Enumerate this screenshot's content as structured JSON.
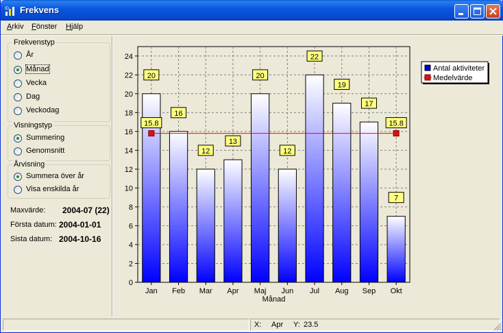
{
  "window": {
    "title": "Frekvens",
    "icon": "app-icon"
  },
  "menu": [
    {
      "label": "Arkiv",
      "accel": "A",
      "rest": "rkiv"
    },
    {
      "label": "Fönster",
      "accel": "F",
      "rest": "önster"
    },
    {
      "label": "Hjälp",
      "accel": "H",
      "rest": "jälp"
    }
  ],
  "groups": {
    "frekvenstyp": {
      "title": "Frekvenstyp",
      "options": [
        {
          "label": "År",
          "selected": false
        },
        {
          "label": "Månad",
          "selected": true
        },
        {
          "label": "Vecka",
          "selected": false
        },
        {
          "label": "Dag",
          "selected": false
        },
        {
          "label": "Veckodag",
          "selected": false
        }
      ]
    },
    "visningstyp": {
      "title": "Visningstyp",
      "options": [
        {
          "label": "Summering",
          "selected": true
        },
        {
          "label": "Genomsnitt",
          "selected": false
        }
      ]
    },
    "arvisning": {
      "title": "Årvisning",
      "options": [
        {
          "label": "Summera över år",
          "selected": true
        },
        {
          "label": "Visa enskilda år",
          "selected": false
        }
      ]
    }
  },
  "info": [
    {
      "label": "Maxvärde:",
      "value": "2004-07 (22)"
    },
    {
      "label": "Första datum:",
      "value": "2004-01-01"
    },
    {
      "label": "Sista datum:",
      "value": "2004-10-16"
    }
  ],
  "status": {
    "x_label": "X:",
    "x_value": "Apr",
    "y_label": "Y:",
    "y_value": "23.5"
  },
  "colors": {
    "bar_top": "#ffffff",
    "bar_bottom": "#0000ff",
    "mean_line": "#ff0000",
    "label_bg": "#ffff80",
    "plot_bg": "#ece9d8"
  },
  "chart_data": {
    "type": "bar",
    "categories": [
      "Jan",
      "Feb",
      "Mar",
      "Apr",
      "Maj",
      "Jun",
      "Jul",
      "Aug",
      "Sep",
      "Okt"
    ],
    "series": [
      {
        "name": "Antal aktiviteter",
        "values": [
          20,
          16,
          12,
          13,
          20,
          12,
          22,
          19,
          17,
          7
        ]
      }
    ],
    "mean": {
      "name": "Medelvärde",
      "value": 15.8,
      "label": "15.8"
    },
    "xlabel": "Månad",
    "ylabel": "",
    "ylim": [
      0,
      25
    ],
    "yticks": [
      0,
      2,
      4,
      6,
      8,
      10,
      12,
      14,
      16,
      18,
      20,
      22,
      24
    ],
    "grid": true,
    "legend": "top-right"
  }
}
